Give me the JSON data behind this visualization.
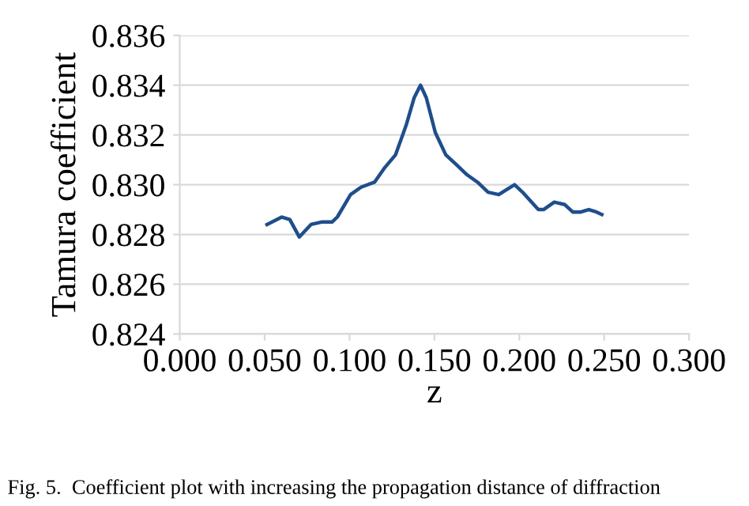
{
  "chart_data": {
    "type": "line",
    "xlabel": "z",
    "ylabel": "Tamura coefficient",
    "annotations": [
      "Fig. 5.  Coefficient plot with increasing the propagation distance of diffraction"
    ],
    "x": [
      0.0514,
      0.0601,
      0.0648,
      0.0704,
      0.0773,
      0.0835,
      0.0897,
      0.0928,
      0.1006,
      0.1068,
      0.1147,
      0.1209,
      0.1271,
      0.1334,
      0.1381,
      0.1418,
      0.1452,
      0.1505,
      0.1567,
      0.163,
      0.1692,
      0.1754,
      0.1816,
      0.1879,
      0.1925,
      0.1972,
      0.2019,
      0.2112,
      0.2143,
      0.2206,
      0.2268,
      0.2315,
      0.2362,
      0.2409,
      0.2455,
      0.2486
    ],
    "series": [
      {
        "color": "#1f4e8c",
        "values": [
          0.8284,
          0.8287,
          0.8286,
          0.8279,
          0.8284,
          0.8285,
          0.8285,
          0.8287,
          0.8296,
          0.8299,
          0.8301,
          0.8307,
          0.8312,
          0.8324,
          0.8335,
          0.834,
          0.8335,
          0.8321,
          0.8312,
          0.8308,
          0.8304,
          0.8301,
          0.8297,
          0.8296,
          0.8298,
          0.83,
          0.8297,
          0.829,
          0.829,
          0.8293,
          0.8292,
          0.8289,
          0.8289,
          0.829,
          0.8289,
          0.8288
        ]
      }
    ],
    "xlim": [
      0.0,
      0.3
    ],
    "xticks": [
      {
        "value": 0.0,
        "label": "0.000"
      },
      {
        "value": 0.05,
        "label": "0.050"
      },
      {
        "value": 0.1,
        "label": "0.100"
      },
      {
        "value": 0.15,
        "label": "0.150"
      },
      {
        "value": 0.2,
        "label": "0.200"
      },
      {
        "value": 0.25,
        "label": "0.250"
      },
      {
        "value": 0.3,
        "label": "0.300"
      }
    ],
    "ylim": [
      0.824,
      0.836
    ],
    "yticks": [
      0.824,
      0.826,
      0.828,
      {
        "value": 0.83,
        "label": "0.830"
      },
      0.832,
      0.834,
      0.836
    ],
    "grid": "y",
    "marker": "none",
    "line_style": "solid"
  }
}
